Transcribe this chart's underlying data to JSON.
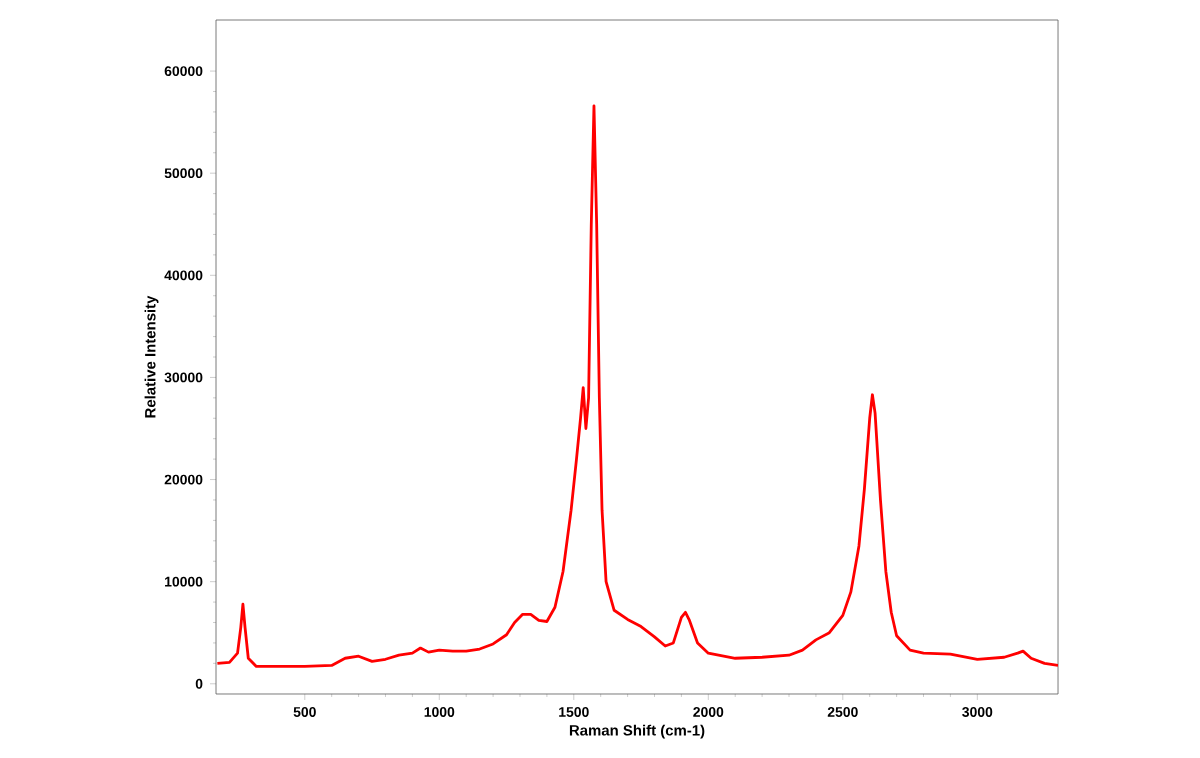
{
  "chart_data": {
    "type": "line",
    "xlabel": "Raman Shift (cm-1)",
    "ylabel": "Relative Intensity",
    "xlim": [
      170,
      3300
    ],
    "ylim": [
      -1000,
      65000
    ],
    "xticks": [
      500,
      1000,
      1500,
      2000,
      2500,
      3000
    ],
    "yticks": [
      0,
      10000,
      20000,
      30000,
      40000,
      50000,
      60000
    ],
    "marker": "none",
    "line_style": "solid",
    "series": [
      {
        "color": "#ff0000",
        "x": [
          175,
          220,
          250,
          262,
          270,
          278,
          290,
          320,
          400,
          500,
          600,
          650,
          700,
          750,
          800,
          850,
          900,
          930,
          960,
          1000,
          1050,
          1100,
          1150,
          1200,
          1250,
          1280,
          1310,
          1340,
          1370,
          1400,
          1430,
          1460,
          1490,
          1510,
          1525,
          1535,
          1545,
          1555,
          1565,
          1575,
          1585,
          1595,
          1605,
          1620,
          1650,
          1700,
          1750,
          1800,
          1840,
          1870,
          1900,
          1915,
          1930,
          1960,
          2000,
          2100,
          2200,
          2300,
          2350,
          2400,
          2450,
          2500,
          2530,
          2560,
          2580,
          2600,
          2610,
          2620,
          2640,
          2660,
          2680,
          2700,
          2750,
          2800,
          2900,
          3000,
          3100,
          3150,
          3170,
          3200,
          3250,
          3300
        ],
        "values": [
          2000,
          2100,
          3000,
          5500,
          7800,
          5500,
          2500,
          1700,
          1700,
          1700,
          1800,
          2500,
          2700,
          2200,
          2400,
          2800,
          3000,
          3500,
          3100,
          3300,
          3200,
          3200,
          3400,
          3900,
          4800,
          6000,
          6800,
          6800,
          6200,
          6100,
          7500,
          11000,
          17000,
          22000,
          26000,
          29000,
          25000,
          28000,
          45000,
          56600,
          45000,
          28000,
          17000,
          10000,
          7200,
          6300,
          5600,
          4600,
          3700,
          4000,
          6500,
          7000,
          6200,
          4000,
          3000,
          2500,
          2600,
          2800,
          3300,
          4300,
          5000,
          6700,
          9000,
          13500,
          19000,
          26000,
          28300,
          26500,
          18000,
          11000,
          7000,
          4700,
          3300,
          3000,
          2900,
          2400,
          2600,
          3000,
          3200,
          2500,
          2000,
          1800
        ]
      }
    ]
  }
}
